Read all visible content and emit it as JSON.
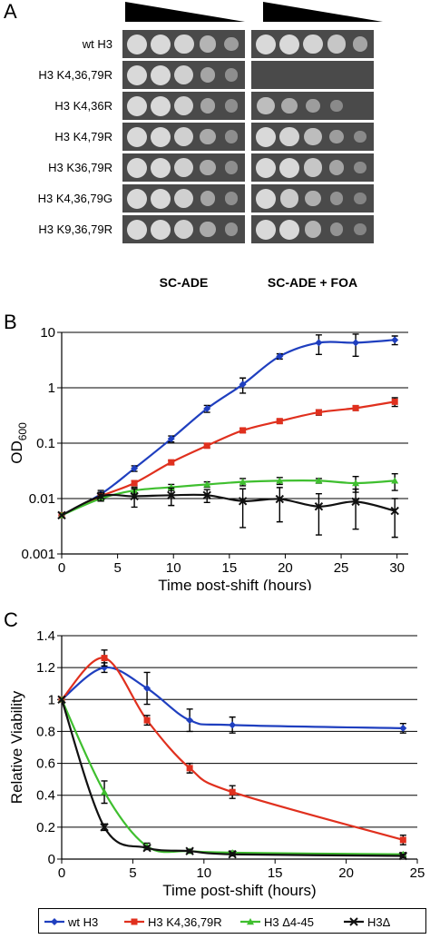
{
  "panels": {
    "a": {
      "letter": "A"
    },
    "b": {
      "letter": "B"
    },
    "c": {
      "letter": "C"
    }
  },
  "spot_assay": {
    "strains": [
      "wt H3",
      "H3 K4,36,79R",
      "H3 K4,36R",
      "H3 K4,79R",
      "H3 K36,79R",
      "H3 K4,36,79G",
      "H3 K9,36,79R"
    ],
    "conditions": [
      "SC-ADE",
      "SC-ADE + FOA"
    ],
    "colors": {
      "plate": "#4a4a4a",
      "spot": "#d9d9d9"
    },
    "spot_levels": {
      "SC-ADE": [
        [
          1,
          1,
          0.95,
          0.6,
          0.35
        ],
        [
          1,
          1,
          0.9,
          0.45,
          0.2
        ],
        [
          1,
          1,
          0.9,
          0.45,
          0.2
        ],
        [
          1,
          1,
          0.9,
          0.5,
          0.2
        ],
        [
          1,
          1,
          0.9,
          0.5,
          0.2
        ],
        [
          1,
          1,
          0.9,
          0.45,
          0.2
        ],
        [
          1,
          1,
          0.9,
          0.5,
          0.25
        ]
      ],
      "SC-ADE + FOA": [
        [
          1,
          1,
          0.95,
          0.8,
          0.45
        ],
        [
          0,
          0,
          0,
          0,
          0
        ],
        [
          0.7,
          0.5,
          0.35,
          0.15,
          0
        ],
        [
          1,
          0.95,
          0.7,
          0.35,
          0.15
        ],
        [
          1,
          1,
          0.8,
          0.45,
          0.15
        ],
        [
          1,
          0.85,
          0.55,
          0.25,
          0.1
        ],
        [
          1,
          1,
          0.6,
          0.25,
          0.1
        ]
      ]
    }
  },
  "chart_data": [
    {
      "type": "line",
      "panel": "B",
      "xlabel": "Time post-shift (hours)",
      "ylabel": "OD",
      "ylabel_sub": "600",
      "xlim": [
        0,
        31
      ],
      "ylim": [
        0.001,
        10
      ],
      "yscale": "log",
      "xticks": [
        "0",
        "5",
        "10",
        "15",
        "20",
        "25",
        "30"
      ],
      "yticks": [
        "0.001",
        "0.01",
        "0.1",
        "1",
        "10"
      ],
      "grid": "horizontal",
      "series": [
        {
          "color": "#1f3fbf",
          "marker": "diamond",
          "x": [
            0,
            3.5,
            6.5,
            9.8,
            13,
            16.2,
            19.5,
            23,
            26.3,
            29.8
          ],
          "y": [
            0.005,
            0.012,
            0.035,
            0.12,
            0.42,
            1.15,
            3.7,
            6.5,
            6.5,
            7.3
          ],
          "err": [
            0,
            0.002,
            0.004,
            0.015,
            0.06,
            0.35,
            0.4,
            2.5,
            2.8,
            1.3
          ]
        },
        {
          "color": "#e0301e",
          "marker": "square",
          "x": [
            0,
            3.5,
            6.5,
            9.8,
            13,
            16.2,
            19.5,
            23,
            26.3,
            29.8
          ],
          "y": [
            0.005,
            0.011,
            0.019,
            0.045,
            0.09,
            0.17,
            0.25,
            0.36,
            0.43,
            0.56
          ],
          "err": [
            0,
            0.001,
            0.002,
            0.004,
            0.008,
            0.015,
            0.02,
            0.04,
            0.04,
            0.1
          ]
        },
        {
          "color": "#3fbf2f",
          "marker": "triangle",
          "x": [
            0,
            3.5,
            6.5,
            9.8,
            13,
            16.2,
            19.5,
            23,
            26.3,
            29.8
          ],
          "y": [
            0.005,
            0.01,
            0.014,
            0.016,
            0.018,
            0.02,
            0.021,
            0.021,
            0.019,
            0.021
          ],
          "err": [
            0,
            0.001,
            0.002,
            0.002,
            0.002,
            0.003,
            0.003,
            0.002,
            0.006,
            0.007
          ]
        },
        {
          "color": "#111111",
          "marker": "x",
          "x": [
            0,
            3.5,
            6.5,
            9.8,
            13,
            16.2,
            19.5,
            23,
            26.3,
            29.8
          ],
          "y": [
            0.005,
            0.011,
            0.011,
            0.0115,
            0.0115,
            0.009,
            0.0098,
            0.0072,
            0.0088,
            0.006
          ],
          "err": [
            0,
            0.002,
            0.004,
            0.004,
            0.003,
            0.006,
            0.006,
            0.005,
            0.006,
            0.004
          ]
        }
      ]
    },
    {
      "type": "line",
      "panel": "C",
      "xlabel": "Time post-shift (hours)",
      "ylabel": "Relative Viability",
      "xlim": [
        0,
        25
      ],
      "ylim": [
        0,
        1.4
      ],
      "xticks": [
        "0",
        "5",
        "10",
        "15",
        "20",
        "25"
      ],
      "yticks": [
        "0",
        "0.2",
        "0.4",
        "0.6",
        "0.8",
        "1",
        "1.2",
        "1.4"
      ],
      "grid": "horizontal",
      "series": [
        {
          "name": "wt H3",
          "color": "#1f3fbf",
          "marker": "diamond",
          "x": [
            0,
            3,
            6,
            9,
            12,
            24
          ],
          "y": [
            1.0,
            1.2,
            1.07,
            0.87,
            0.84,
            0.82
          ],
          "err": [
            0,
            0.03,
            0.1,
            0.07,
            0.05,
            0.03
          ]
        },
        {
          "name": "H3 K4,36,79R",
          "color": "#e0301e",
          "marker": "square",
          "x": [
            0,
            3,
            6,
            9,
            12,
            24
          ],
          "y": [
            1.0,
            1.26,
            0.87,
            0.57,
            0.42,
            0.12
          ],
          "err": [
            0,
            0.05,
            0.03,
            0.03,
            0.04,
            0.03
          ]
        },
        {
          "name": "H3 Δ4-45",
          "color": "#3fbf2f",
          "marker": "triangle",
          "x": [
            0,
            3,
            6,
            9,
            12,
            24
          ],
          "y": [
            1.0,
            0.42,
            0.08,
            0.05,
            0.04,
            0.03
          ],
          "err": [
            0,
            0.07,
            0.02,
            0.01,
            0.01,
            0.01
          ]
        },
        {
          "name": "H3Δ",
          "color": "#111111",
          "marker": "x",
          "x": [
            0,
            3,
            6,
            9,
            12,
            24
          ],
          "y": [
            1.0,
            0.2,
            0.07,
            0.05,
            0.03,
            0.02
          ],
          "err": [
            0,
            0.02,
            0.01,
            0.01,
            0.01,
            0.01
          ]
        }
      ]
    }
  ]
}
